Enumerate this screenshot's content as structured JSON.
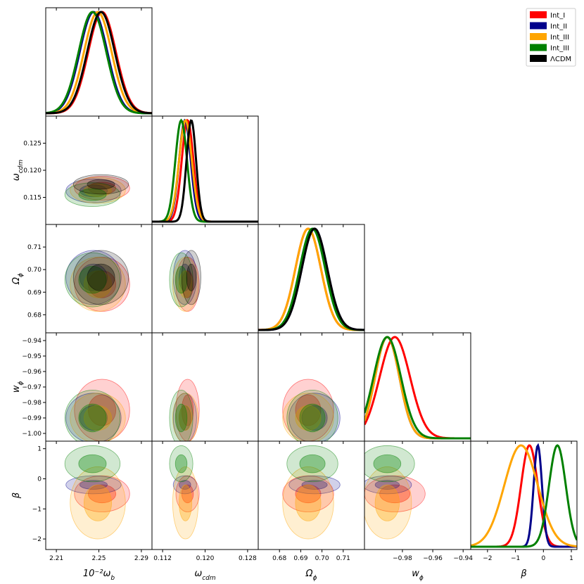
{
  "chart_data": {
    "type": "corner",
    "title": "",
    "parameters": [
      {
        "key": "omega_b",
        "xlabel": "10⁻²ω",
        "xsub": "b",
        "ylabel": "",
        "range": [
          2.2,
          2.3
        ],
        "ticks": [
          2.21,
          2.25,
          2.29
        ],
        "tick_labels": [
          "2.21",
          "2.25",
          "2.29"
        ]
      },
      {
        "key": "omega_cdm",
        "xlabel": "ω",
        "xsub": "cdm",
        "ylabel": "ω",
        "ysub": "cdm",
        "range": [
          0.11,
          0.13
        ],
        "ticks": [
          0.112,
          0.12,
          0.128
        ],
        "tick_labels": [
          "0.112",
          "0.120",
          "0.128"
        ],
        "yticks": [
          0.115,
          0.12,
          0.125
        ],
        "ytick_labels": [
          "0.115",
          "0.120",
          "0.125"
        ],
        "yrange": [
          0.11,
          0.13
        ]
      },
      {
        "key": "Omega_phi",
        "xlabel": "Ω",
        "xsub": "ϕ",
        "ylabel": "Ω",
        "ysub": "ϕ",
        "range": [
          0.67,
          0.72
        ],
        "ticks": [
          0.68,
          0.69,
          0.7,
          0.71
        ],
        "tick_labels": [
          "0.68",
          "0.69",
          "0.70",
          "0.71"
        ],
        "yticks": [
          0.68,
          0.69,
          0.7,
          0.71
        ],
        "ytick_labels": [
          "0.68",
          "0.69",
          "0.70",
          "0.71"
        ],
        "yrange": [
          0.672,
          0.72
        ]
      },
      {
        "key": "w_phi",
        "xlabel": "w",
        "xsub": "ϕ",
        "ylabel": "w",
        "ysub": "ϕ",
        "range": [
          -1.005,
          -0.935
        ],
        "ticks": [
          -0.98,
          -0.96,
          -0.94
        ],
        "tick_labels": [
          "−0.98",
          "−0.96",
          "−0.94"
        ],
        "yticks": [
          -0.94,
          -0.95,
          -0.96,
          -0.97,
          -0.98,
          -0.99,
          -1.0
        ],
        "ytick_labels": [
          "−0.94",
          "−0.95",
          "−0.96",
          "−0.97",
          "−0.98",
          "−0.99",
          "−1.00"
        ],
        "yrange": [
          -1.005,
          -0.935
        ]
      },
      {
        "key": "beta",
        "xlabel": "β",
        "xsub": "",
        "ylabel": "β",
        "ysub": "",
        "range": [
          -2.6,
          1.2
        ],
        "ticks": [
          -2,
          -1,
          0,
          1
        ],
        "tick_labels": [
          "−2",
          "−1",
          "0",
          "1"
        ],
        "yticks": [
          1,
          0,
          -1,
          -2
        ],
        "ytick_labels": [
          "1",
          "0",
          "−1",
          "−2"
        ],
        "yrange": [
          -2.35,
          1.25
        ]
      }
    ],
    "series": [
      {
        "name": "Int_I",
        "color": "#ff0000",
        "mean": [
          2.253,
          0.1167,
          0.6935,
          -0.985,
          -0.5
        ],
        "sigma": [
          0.013,
          0.0011,
          0.006,
          0.01,
          0.3
        ]
      },
      {
        "name": "Int_II",
        "color": "#00008b",
        "mean": [
          2.245,
          0.1162,
          0.6965,
          -0.99,
          -0.2
        ],
        "sigma": [
          0.013,
          0.0011,
          0.006,
          0.008,
          0.15
        ]
      },
      {
        "name": "Int_III",
        "color": "#ffa500",
        "mean": [
          2.249,
          0.1163,
          0.6935,
          -0.99,
          -0.8
        ],
        "sigma": [
          0.013,
          0.0012,
          0.006,
          0.008,
          0.6
        ]
      },
      {
        "name": "Int_III",
        "color": "#008000",
        "mean": [
          2.244,
          0.1155,
          0.6955,
          -0.99,
          0.5
        ],
        "sigma": [
          0.013,
          0.0011,
          0.006,
          0.009,
          0.3
        ]
      },
      {
        "name": "ΛCDM",
        "color": "#000000",
        "mean": [
          2.252,
          0.1174,
          0.6965,
          -1.0,
          0.0
        ],
        "sigma": [
          0.013,
          0.0009,
          0.006,
          0.0,
          0.0
        ]
      }
    ],
    "legend": {
      "placement": "top-right",
      "entries": [
        "Int_I",
        "Int_II",
        "Int_III",
        "Int_III",
        "ΛCDM"
      ]
    }
  }
}
